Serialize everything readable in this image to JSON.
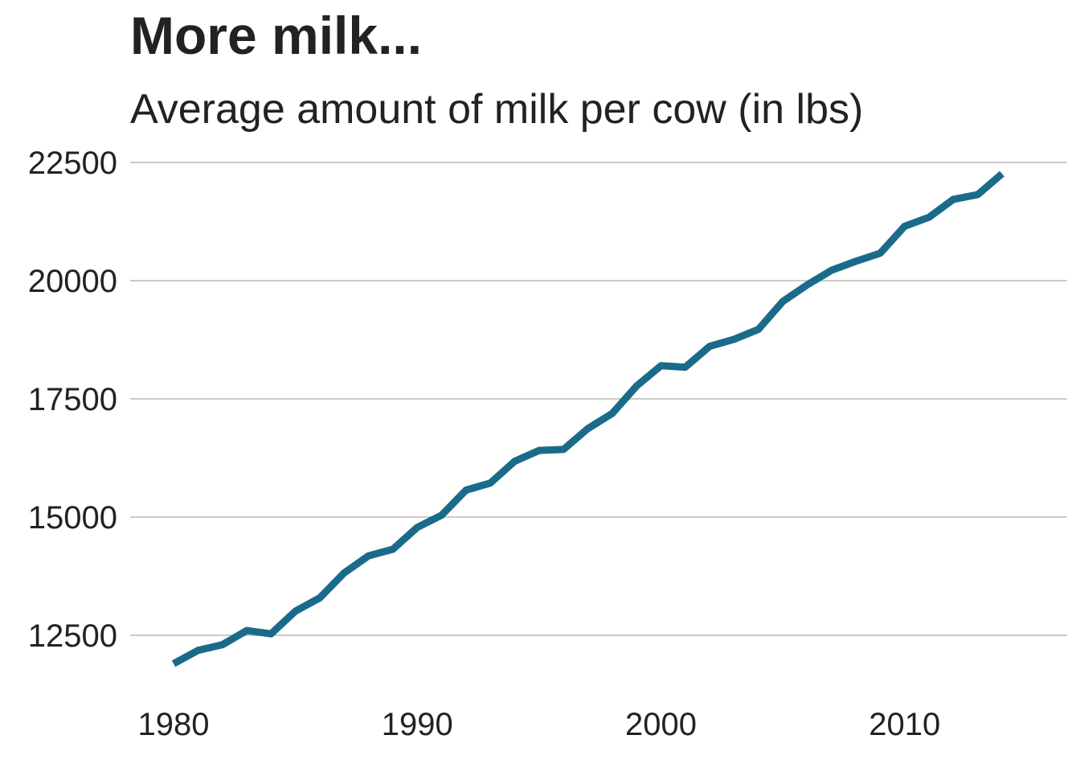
{
  "chart_data": {
    "type": "line",
    "title": "More milk...",
    "subtitle": "Average amount of milk per cow (in lbs)",
    "xlabel": "",
    "ylabel": "",
    "xlim": [
      1980,
      2014
    ],
    "ylim": [
      11500,
      22700
    ],
    "x_ticks": [
      1980,
      1990,
      2000,
      2010
    ],
    "y_ticks": [
      12500,
      15000,
      17500,
      20000,
      22500
    ],
    "grid": "horizontal",
    "legend": "none",
    "series": [
      {
        "color": "#1a6b8a",
        "x": [
          1980,
          1981,
          1982,
          1983,
          1984,
          1985,
          1986,
          1987,
          1988,
          1989,
          1990,
          1991,
          1992,
          1993,
          1994,
          1995,
          1996,
          1997,
          1998,
          1999,
          2000,
          2001,
          2002,
          2003,
          2004,
          2005,
          2006,
          2007,
          2008,
          2009,
          2010,
          2011,
          2012,
          2013,
          2014
        ],
        "y": [
          11900,
          12180,
          12300,
          12600,
          12530,
          13010,
          13290,
          13820,
          14180,
          14320,
          14780,
          15040,
          15570,
          15720,
          16180,
          16410,
          16430,
          16870,
          17190,
          17770,
          18200,
          18170,
          18610,
          18760,
          18970,
          19560,
          19910,
          20220,
          20410,
          20580,
          21150,
          21340,
          21720,
          21820,
          22260
        ]
      }
    ]
  }
}
